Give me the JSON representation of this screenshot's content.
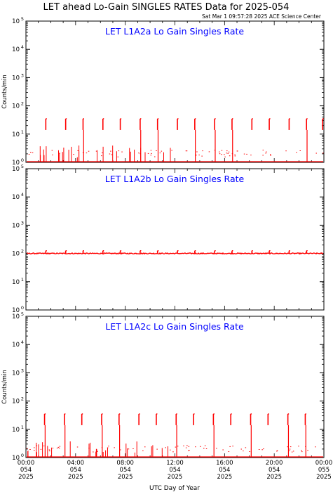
{
  "header": {
    "title": "LET ahead Lo-Gain SINGLES RATES Data for 2025-054",
    "timestamp": "Sat Mar  1 09:57:28 2025 ACE Science Center"
  },
  "colors": {
    "data": "#ff0000",
    "panel_title": "#0000ff",
    "axes": "#000000"
  },
  "chart_data": [
    {
      "type": "line",
      "title": "LET L1A2a Lo Gain Singles Rate",
      "ylabel": "Counts/min",
      "y_scale": "log",
      "ylim": [
        1,
        100000
      ],
      "y_ticks": [
        {
          "mant": "10",
          "exp": "0"
        },
        {
          "mant": "10",
          "exp": "1"
        },
        {
          "mant": "10",
          "exp": "2"
        },
        {
          "mant": "10",
          "exp": "3"
        },
        {
          "mant": "10",
          "exp": "4"
        },
        {
          "mant": "10",
          "exp": "5"
        }
      ],
      "baseline": 1,
      "spike_peak": 35,
      "spike_hours": [
        1.6,
        3.2,
        4.6,
        6.2,
        7.6,
        9.2,
        10.6,
        12.2,
        13.6,
        15.2,
        16.6,
        18.2,
        19.6,
        21.2,
        22.6,
        23.9
      ],
      "xlim_hours": [
        0,
        24
      ]
    },
    {
      "type": "line",
      "title": "LET L1A2b Lo Gain Singles Rate",
      "ylabel": "",
      "y_scale": "log",
      "ylim": [
        1,
        100000
      ],
      "y_ticks": [
        {
          "mant": "10",
          "exp": "0"
        },
        {
          "mant": "10",
          "exp": "1"
        },
        {
          "mant": "10",
          "exp": "2"
        },
        {
          "mant": "10",
          "exp": "3"
        },
        {
          "mant": "10",
          "exp": "4"
        },
        {
          "mant": "10",
          "exp": "5"
        }
      ],
      "baseline": 100,
      "spike_peak": 125,
      "spike_hours": [
        1.6,
        3.2,
        4.6,
        6.2,
        7.6,
        9.2,
        10.6,
        12.2,
        13.6,
        15.2,
        16.6,
        18.2,
        19.6,
        21.2,
        22.6
      ],
      "xlim_hours": [
        0,
        24
      ]
    },
    {
      "type": "line",
      "title": "LET L1A2c Lo Gain Singles Rate",
      "ylabel": "Counts/min",
      "y_scale": "log",
      "ylim": [
        1,
        100000
      ],
      "y_ticks": [
        {
          "mant": "10",
          "exp": "0"
        },
        {
          "mant": "10",
          "exp": "1"
        },
        {
          "mant": "10",
          "exp": "2"
        },
        {
          "mant": "10",
          "exp": "3"
        },
        {
          "mant": "10",
          "exp": "4"
        },
        {
          "mant": "10",
          "exp": "5"
        }
      ],
      "baseline": 1,
      "spike_peak": 35,
      "spike_hours": [
        1.5,
        3.1,
        4.5,
        6.1,
        7.5,
        9.1,
        10.5,
        12.1,
        13.5,
        15.1,
        16.5,
        18.1,
        19.5,
        21.1,
        22.5
      ],
      "xlim_hours": [
        0,
        24
      ]
    }
  ],
  "x_axis": {
    "label": "UTC Day of Year",
    "ticks": [
      {
        "hours": 0,
        "time": "00:00",
        "doy": "054",
        "year": "2025"
      },
      {
        "hours": 4,
        "time": "04:00",
        "doy": "054",
        "year": "2025"
      },
      {
        "hours": 8,
        "time": "08:00",
        "doy": "054",
        "year": "2025"
      },
      {
        "hours": 12,
        "time": "12:00",
        "doy": "054",
        "year": "2025"
      },
      {
        "hours": 16,
        "time": "16:00",
        "doy": "054",
        "year": "2025"
      },
      {
        "hours": 20,
        "time": "20:00",
        "doy": "054",
        "year": "2025"
      },
      {
        "hours": 24,
        "time": "00:00",
        "doy": "055",
        "year": "2025"
      }
    ]
  }
}
